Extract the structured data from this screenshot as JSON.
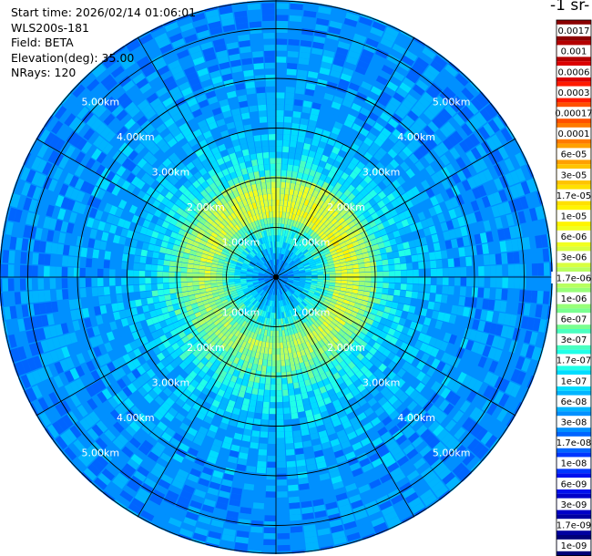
{
  "info": {
    "start_time": "Start time: 2026/02/14 01:06:01",
    "instrument": "WLS200s-181",
    "field": "Field: BETA",
    "elevation": "Elevation(deg): 35.00",
    "nrays": "NRays: 120"
  },
  "colorbar": {
    "unit_label": "-1 sr-",
    "labels": [
      "0.0017",
      "0.001",
      "0.0006",
      "0.0003",
      "0.00017",
      "0.0001",
      "6e-05",
      "3e-05",
      "1.7e-05",
      "1e-05",
      "6e-06",
      "3e-06",
      "1.7e-06",
      "1e-06",
      "6e-07",
      "3e-07",
      "1.7e-07",
      "1e-07",
      "6e-08",
      "3e-08",
      "1.7e-08",
      "1e-08",
      "6e-09",
      "3e-09",
      "1.7e-09",
      "1e-09"
    ],
    "colors": [
      "#8b0000",
      "#b40000",
      "#dc0000",
      "#ff1a00",
      "#ff5000",
      "#ff7a00",
      "#ffa000",
      "#ffc400",
      "#ffe000",
      "#fff400",
      "#f2ff20",
      "#d8ff40",
      "#b8ff60",
      "#98ff78",
      "#7aff90",
      "#4affc0",
      "#20ffe8",
      "#00dcff",
      "#00b4ff",
      "#0090ff",
      "#0064ff",
      "#0036ff",
      "#0010ee",
      "#0000c8",
      "#0000a0",
      "#000078"
    ]
  },
  "chart_data": {
    "type": "heatmap",
    "subtype": "polar-ppi",
    "field": "BETA",
    "nrays": 120,
    "elevation_deg": 35.0,
    "range_ring_labels": [
      "1.00km",
      "2.00km",
      "3.00km",
      "4.00km",
      "5.00km"
    ],
    "range_rings_km": [
      1,
      2,
      3,
      4,
      5
    ],
    "max_range_km": 5.6,
    "color_scale": "log",
    "vmin": 1e-09,
    "vmax": 0.0017,
    "spokes_deg": [
      0,
      30,
      60,
      90,
      120,
      150,
      180,
      210,
      240,
      270,
      300,
      330
    ],
    "radial_profile": [
      {
        "range_km": 0.0,
        "beta": 2e-08
      },
      {
        "range_km": 0.5,
        "beta": 6e-08
      },
      {
        "range_km": 1.0,
        "beta": 3e-07
      },
      {
        "range_km": 1.4,
        "beta": 2e-06
      },
      {
        "range_km": 1.7,
        "beta": 1e-06
      },
      {
        "range_km": 2.0,
        "beta": 3e-07
      },
      {
        "range_km": 2.5,
        "beta": 1e-07
      },
      {
        "range_km": 3.0,
        "beta": 6e-08
      },
      {
        "range_km": 4.0,
        "beta": 4e-08
      },
      {
        "range_km": 5.0,
        "beta": 3e-08
      },
      {
        "range_km": 5.6,
        "beta": 3e-08
      }
    ]
  }
}
